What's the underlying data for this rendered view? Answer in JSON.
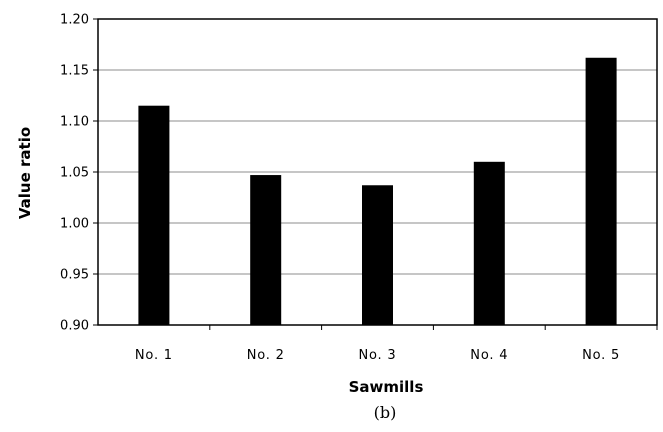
{
  "chart_data": {
    "type": "bar",
    "categories": [
      "No. 1",
      "No. 2",
      "No. 3",
      "No. 4",
      "No. 5"
    ],
    "values": [
      1.115,
      1.047,
      1.037,
      1.06,
      1.162
    ],
    "xlabel": "Sawmills",
    "ylabel": "Value ratio",
    "ylim": [
      0.9,
      1.2
    ],
    "yticks": [
      "0.90",
      "0.95",
      "1.00",
      "1.05",
      "1.10",
      "1.15",
      "1.20"
    ],
    "grid": true,
    "legend": "none",
    "caption": "(b)",
    "bar_color": "#000000",
    "grid_color": "#8c8c8c"
  }
}
